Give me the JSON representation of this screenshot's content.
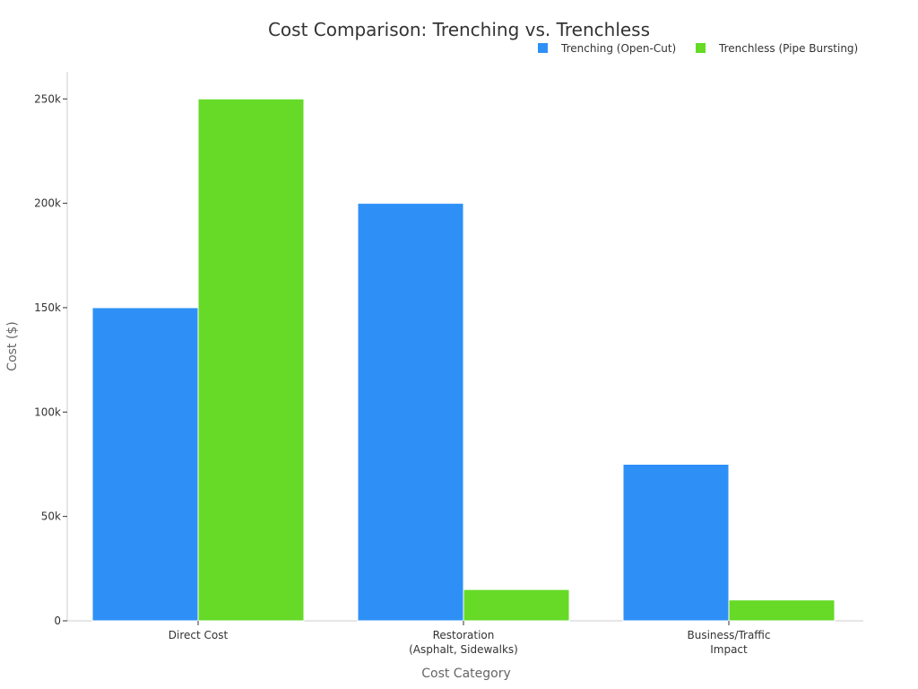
{
  "chart_data": {
    "type": "bar",
    "title": "Cost Comparison: Trenching vs. Trenchless",
    "xlabel": "Cost Category",
    "ylabel": "Cost ($)",
    "categories": [
      [
        "Direct Cost"
      ],
      [
        "Restoration",
        "(Asphalt, Sidewalks)"
      ],
      [
        "Business/Traffic",
        "Impact"
      ]
    ],
    "series": [
      {
        "name": "Trenching (Open-Cut)",
        "color": "#2e90f7",
        "values": [
          150000,
          200000,
          75000
        ]
      },
      {
        "name": "Trenchless (Pipe Bursting)",
        "color": "#66da27",
        "values": [
          250000,
          15000,
          10000
        ]
      }
    ],
    "ylim": [
      0,
      263000
    ],
    "yticks": [
      {
        "value": 0,
        "label": "0"
      },
      {
        "value": 50000,
        "label": "50k"
      },
      {
        "value": 100000,
        "label": "100k"
      },
      {
        "value": 150000,
        "label": "150k"
      },
      {
        "value": 200000,
        "label": "200k"
      },
      {
        "value": 250000,
        "label": "250k"
      }
    ],
    "legend_position": "top-right",
    "grid": false
  }
}
